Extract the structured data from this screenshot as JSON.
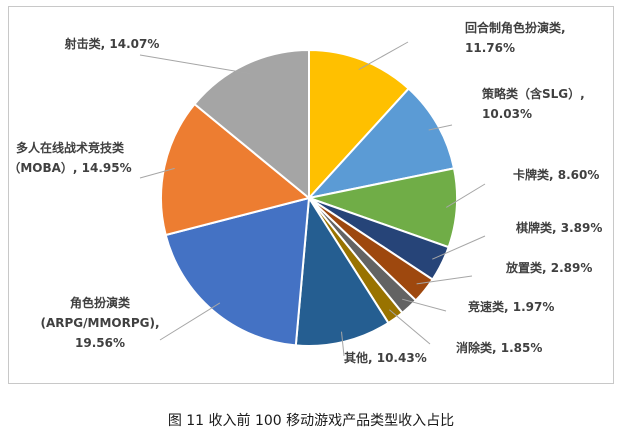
{
  "chart_data": {
    "type": "pie",
    "slices": [
      {
        "label": "回合制角色扮演类",
        "value": 11.76,
        "display": "11.76%",
        "color": "#FFC000"
      },
      {
        "label": "策略类（含SLG）",
        "value": 10.03,
        "display": "10.03%",
        "color": "#5B9BD5"
      },
      {
        "label": "卡牌类",
        "value": 8.6,
        "display": "8.60%",
        "color": "#70AD47"
      },
      {
        "label": "棋牌类",
        "value": 3.89,
        "display": "3.89%",
        "color": "#264478"
      },
      {
        "label": "放置类",
        "value": 2.89,
        "display": "2.89%",
        "color": "#9E480E"
      },
      {
        "label": "竞速类",
        "value": 1.97,
        "display": "1.97%",
        "color": "#636363"
      },
      {
        "label": "消除类",
        "value": 1.85,
        "display": "1.85%",
        "color": "#997300"
      },
      {
        "label": "其他",
        "value": 10.43,
        "display": "10.43%",
        "color": "#255E91"
      },
      {
        "label": "角色扮演类（ARPG/MMORPG）",
        "value": 19.56,
        "display": "19.56%",
        "color": "#4472C4"
      },
      {
        "label": "多人在线战术竞技类（MOBA）",
        "value": 14.95,
        "display": "14.95%",
        "color": "#ED7D31"
      },
      {
        "label": "射击类",
        "value": 14.07,
        "display": "14.07%",
        "color": "#A5A5A5"
      }
    ],
    "label_lines": [
      [
        "回合制角色扮演类,",
        "11.76%"
      ],
      [
        "策略类（含SLG）,",
        "10.03%"
      ],
      [
        "卡牌类, 8.60%"
      ],
      [
        "棋牌类, 3.89%"
      ],
      [
        "放置类, 2.89%"
      ],
      [
        "竞速类, 1.97%"
      ],
      [
        "消除类, 1.85%"
      ],
      [
        "其他, 10.43%"
      ],
      [
        "角色扮演类",
        "(ARPG/MMORPG),",
        "19.56%"
      ],
      [
        "多人在线战术竞技类",
        "（MOBA）, 14.95%"
      ],
      [
        "射击类, 14.07%"
      ]
    ],
    "start_angle_deg": 0,
    "direction": "clockwise",
    "leader_color": "#a6a6a6"
  },
  "caption": "图 11 收入前 100 移动游戏产品类型收入占比"
}
